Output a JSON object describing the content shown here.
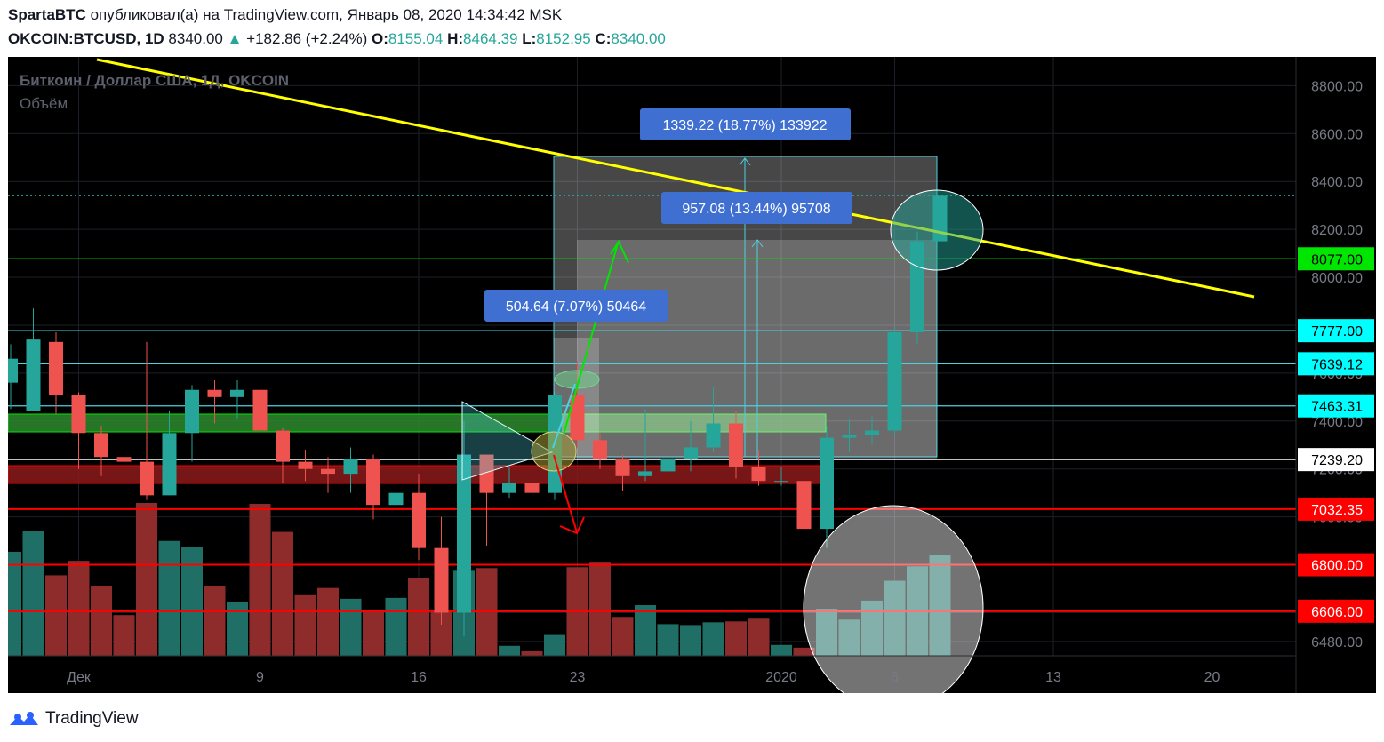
{
  "header": {
    "author": "SpartaBTC",
    "published_text": "опубликовал(а) на TradingView.com, Январь 08, 2020 14:34:42 MSK",
    "symbol": "OKCOIN:BTCUSD, 1D",
    "last": "8340.00",
    "change": "+182.86 (+2.24%)",
    "o_label": "O:",
    "o": "8155.04",
    "h_label": "H:",
    "h": "8464.39",
    "l_label": "L:",
    "l": "8152.95",
    "c_label": "C:",
    "c": "8340.00"
  },
  "chart": {
    "title": "Биткоин / Доллар США, 1Д, OKCOIN",
    "volume_label": "Объём",
    "y_ticks": [
      "8800.00",
      "8600.00",
      "8400.00",
      "8200.00",
      "8000.00",
      "7800.00",
      "7600.00",
      "7400.00",
      "7200.00",
      "7000.00",
      "6800.00",
      "6600.00",
      "6480.00"
    ],
    "x_ticks": [
      "Дек",
      "9",
      "16",
      "23",
      "2020",
      "6",
      "13",
      "20"
    ],
    "price_levels": [
      {
        "value": "8077.00",
        "line": "#00e600",
        "bg": "#00e600",
        "fg": "#000000"
      },
      {
        "value": "7777.00",
        "line": "#4dd0e1",
        "bg": "#00ffff",
        "fg": "#000000"
      },
      {
        "value": "7639.12",
        "line": "#4dd0e1",
        "bg": "#00ffff",
        "fg": "#000000"
      },
      {
        "value": "7463.31",
        "line": "#4dd0e1",
        "bg": "#00ffff",
        "fg": "#000000"
      },
      {
        "value": "7239.20",
        "line": "#ffffff",
        "bg": "#ffffff",
        "fg": "#000000"
      },
      {
        "value": "7032.35",
        "line": "#ff0000",
        "bg": "#ff0000",
        "fg": "#ffffff"
      },
      {
        "value": "6800.00",
        "line": "#ff0000",
        "bg": "#ff0000",
        "fg": "#ffffff"
      },
      {
        "value": "6606.00",
        "line": "#ff0000",
        "bg": "#ff0000",
        "fg": "#ffffff"
      }
    ],
    "measure_labels": [
      "1339.22 (18.77%) 133922",
      "957.08 (13.44%) 95708",
      "504.64 (7.07%) 50464"
    ],
    "colors": {
      "up": "#26a69a",
      "down": "#ef5350",
      "trend": "#ffff00",
      "measure": "#3f6fd1"
    }
  },
  "chart_data": {
    "type": "candlestick",
    "title": "Биткоин / Доллар США, 1Д, OKCOIN",
    "ylim": [
      6420,
      8920
    ],
    "x_ticks": [
      "Дек",
      "9",
      "16",
      "23",
      "2020",
      "6",
      "13",
      "20"
    ],
    "candles": [
      [
        7560,
        7660,
        7720,
        7450
      ],
      [
        7440,
        7740,
        7870,
        7440
      ],
      [
        7730,
        7510,
        7770,
        7430
      ],
      [
        7510,
        7350,
        7520,
        7200
      ],
      [
        7350,
        7250,
        7380,
        7170
      ],
      [
        7250,
        7230,
        7320,
        7160
      ],
      [
        7230,
        7090,
        7730,
        7070
      ],
      [
        7090,
        7350,
        7440,
        7090
      ],
      [
        7350,
        7530,
        7550,
        7230
      ],
      [
        7530,
        7500,
        7570,
        7390
      ],
      [
        7500,
        7530,
        7570,
        7410
      ],
      [
        7530,
        7360,
        7580,
        7260
      ],
      [
        7360,
        7230,
        7370,
        7140
      ],
      [
        7230,
        7200,
        7280,
        7150
      ],
      [
        7200,
        7180,
        7250,
        7100
      ],
      [
        7180,
        7240,
        7290,
        7100
      ],
      [
        7240,
        7050,
        7260,
        6990
      ],
      [
        7050,
        7100,
        7210,
        7030
      ],
      [
        7100,
        6870,
        7180,
        6820
      ],
      [
        6870,
        6600,
        7000,
        6550
      ],
      [
        6600,
        7260,
        7400,
        6500
      ],
      [
        7260,
        7100,
        7260,
        6880
      ],
      [
        7100,
        7140,
        7210,
        7080
      ],
      [
        7140,
        7100,
        7190,
        7090
      ],
      [
        7100,
        7510,
        7520,
        7070
      ],
      [
        7510,
        7320,
        7650,
        7290
      ],
      [
        7320,
        7240,
        7350,
        7200
      ],
      [
        7240,
        7170,
        7260,
        7110
      ],
      [
        7170,
        7190,
        7450,
        7150
      ],
      [
        7190,
        7240,
        7300,
        7150
      ],
      [
        7240,
        7290,
        7400,
        7190
      ],
      [
        7290,
        7390,
        7540,
        7270
      ],
      [
        7390,
        7210,
        7440,
        7160
      ],
      [
        7210,
        7150,
        7280,
        7130
      ],
      [
        7150,
        7150,
        7210,
        7130
      ],
      [
        7150,
        6950,
        7170,
        6900
      ],
      [
        6950,
        7330,
        7380,
        6870
      ],
      [
        7330,
        7340,
        7410,
        7270
      ],
      [
        7340,
        7360,
        7420,
        7300
      ],
      [
        7360,
        7770,
        7790,
        7340
      ],
      [
        7770,
        8150,
        8190,
        7720
      ],
      [
        8150,
        8340,
        8464,
        8152
      ]
    ],
    "volumes": [
      1.15,
      1.38,
      0.89,
      1.05,
      0.77,
      0.45,
      1.69,
      1.27,
      1.2,
      0.77,
      0.6,
      1.68,
      1.37,
      0.67,
      0.75,
      0.63,
      0.5,
      0.64,
      0.86,
      0.51,
      0.94,
      0.97,
      0.11,
      0.05,
      0.23,
      0.98,
      1.03,
      0.43,
      0.56,
      0.35,
      0.34,
      0.37,
      0.38,
      0.41,
      0.12,
      0.09,
      0.52,
      0.4,
      0.61,
      0.83,
      0.99,
      1.11
    ]
  }
}
